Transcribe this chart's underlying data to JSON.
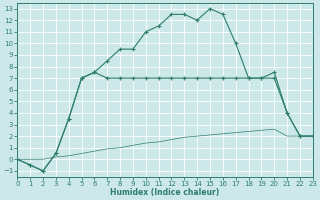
{
  "xlabel": "Humidex (Indice chaleur)",
  "bg_color": "#cce8e8",
  "grid_color": "#b8d8d8",
  "line_color": "#2e7d6e",
  "xlim": [
    0,
    23
  ],
  "ylim": [
    -1.5,
    13.5
  ],
  "xticks": [
    0,
    1,
    2,
    3,
    4,
    5,
    6,
    7,
    8,
    9,
    10,
    11,
    12,
    13,
    14,
    15,
    16,
    17,
    18,
    19,
    20,
    21,
    22,
    23
  ],
  "yticks": [
    -1,
    0,
    1,
    2,
    3,
    4,
    5,
    6,
    7,
    8,
    9,
    10,
    11,
    12,
    13
  ],
  "curve1_x": [
    0,
    1,
    2,
    3,
    4,
    5,
    6,
    7,
    8,
    9,
    10,
    11,
    12,
    13,
    14,
    15,
    16,
    17,
    18,
    19,
    20,
    21,
    22,
    23
  ],
  "curve1_y": [
    0,
    -0.5,
    -1,
    0.5,
    3.5,
    7,
    7.5,
    8.5,
    9.5,
    9.5,
    11,
    11.5,
    12.5,
    12.5,
    12,
    13,
    12.5,
    10,
    7,
    7,
    7.5,
    4,
    2,
    2
  ],
  "curve2_x": [
    0,
    1,
    2,
    3,
    4,
    5,
    6,
    7,
    8,
    9,
    10,
    11,
    12,
    13,
    14,
    15,
    16,
    17,
    18,
    19,
    20,
    21,
    22,
    23
  ],
  "curve2_y": [
    0,
    -0.5,
    -1,
    0.5,
    3.5,
    7,
    7.5,
    7,
    7,
    7,
    7,
    7,
    7,
    7,
    7,
    7,
    7,
    7,
    7,
    7,
    7,
    4,
    2,
    2
  ],
  "curve3_x": [
    0,
    1,
    2,
    3,
    4,
    5,
    6,
    7,
    8,
    9,
    10,
    11,
    12,
    13,
    14,
    15,
    16,
    17,
    18,
    19,
    20,
    21,
    22,
    23
  ],
  "curve3_y": [
    0,
    0,
    0,
    0.2,
    0.3,
    0.5,
    0.7,
    0.9,
    1.0,
    1.2,
    1.4,
    1.5,
    1.7,
    1.9,
    2.0,
    2.1,
    2.2,
    2.3,
    2.4,
    2.5,
    2.6,
    2,
    2,
    2
  ]
}
